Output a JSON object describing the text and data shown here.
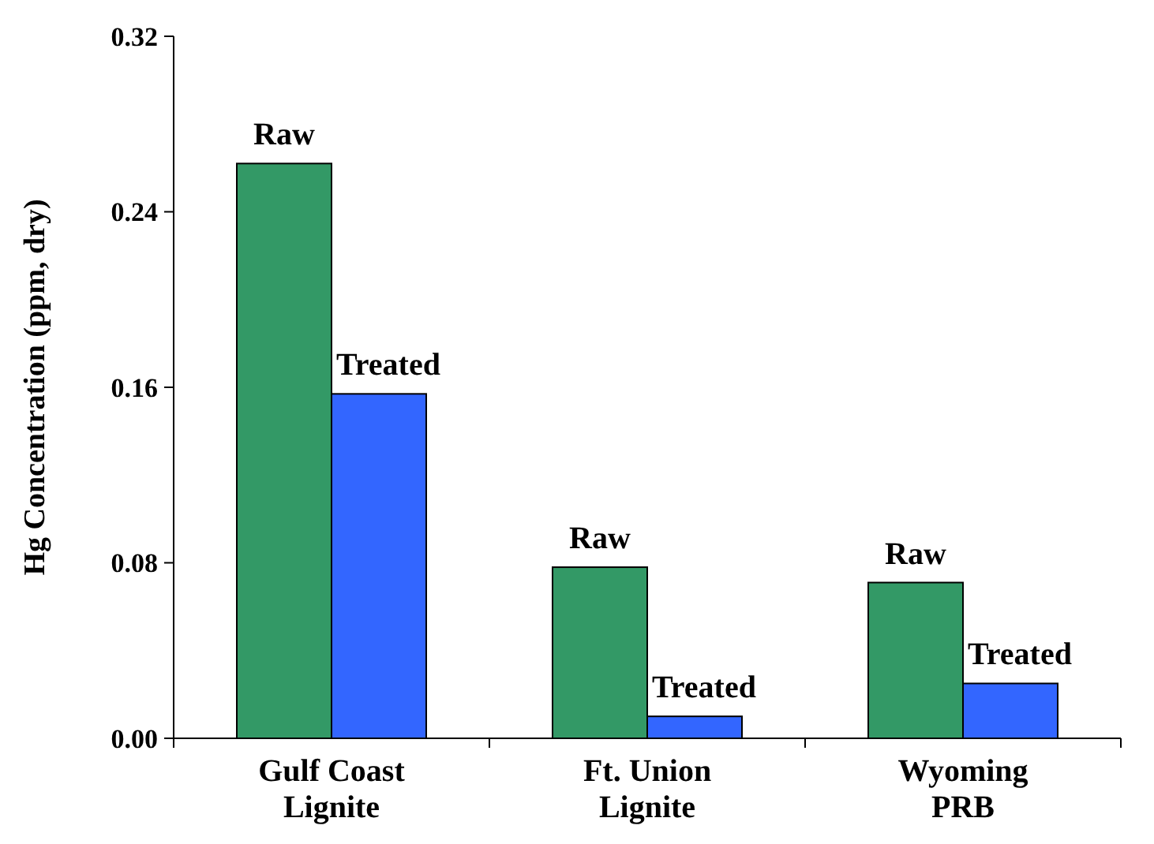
{
  "chart_data": {
    "type": "bar",
    "ylabel": "Hg Concentration (ppm, dry)",
    "categories": [
      "Gulf Coast Lignite",
      "Ft. Union Lignite",
      "Wyoming PRB"
    ],
    "series": [
      {
        "name": "Raw",
        "color": "#339966",
        "values": [
          0.262,
          0.078,
          0.071
        ]
      },
      {
        "name": "Treated",
        "color": "#3366ff",
        "values": [
          0.157,
          0.01,
          0.025
        ]
      }
    ],
    "ylim": [
      0,
      0.32
    ],
    "yticks": [
      {
        "value": 0,
        "label": "0.00"
      },
      {
        "value": 0.08,
        "label": "0.08"
      },
      {
        "value": 0.16,
        "label": "0.16"
      },
      {
        "value": 0.24,
        "label": "0.24"
      },
      {
        "value": 0.32,
        "label": "0.32"
      }
    ],
    "grid": false
  }
}
